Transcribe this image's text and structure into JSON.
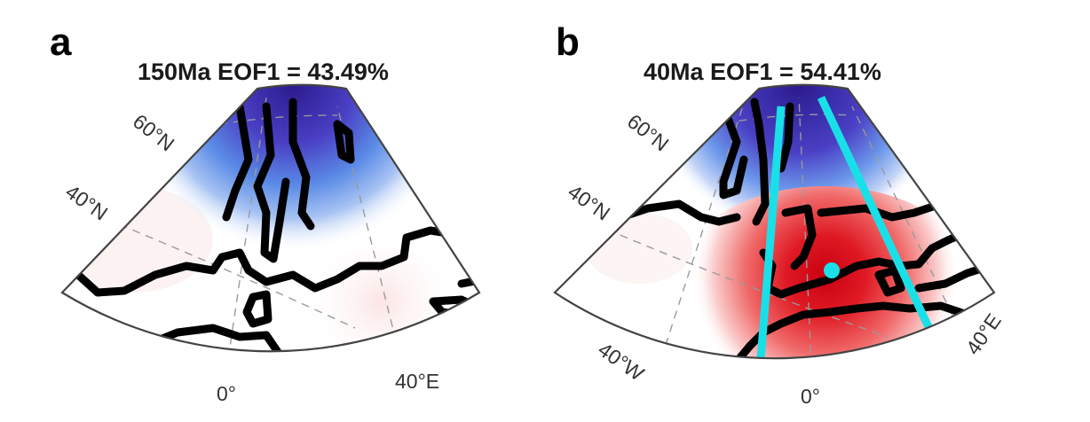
{
  "panels": [
    {
      "letter": "a",
      "title": "150Ma  EOF1 = 43.49%",
      "labels": {
        "lat60": "60°N",
        "lat40": "40°N",
        "lon0": "0°",
        "lon40e": "40°E"
      }
    },
    {
      "letter": "b",
      "title": "40Ma  EOF1 = 54.41%",
      "labels": {
        "lat60": "60°N",
        "lat40": "40°N",
        "lon40w": "40°W",
        "lon0": "0°",
        "lon40e": "40°E"
      }
    }
  ],
  "colors": {
    "negative_strong": "#3a2a9e",
    "negative_weak": "#dfe6fb",
    "positive_strong": "#cc0010",
    "positive_weak": "#fbe3e3",
    "coastline": "#000000",
    "marker_lines": "#19e0e8"
  }
}
